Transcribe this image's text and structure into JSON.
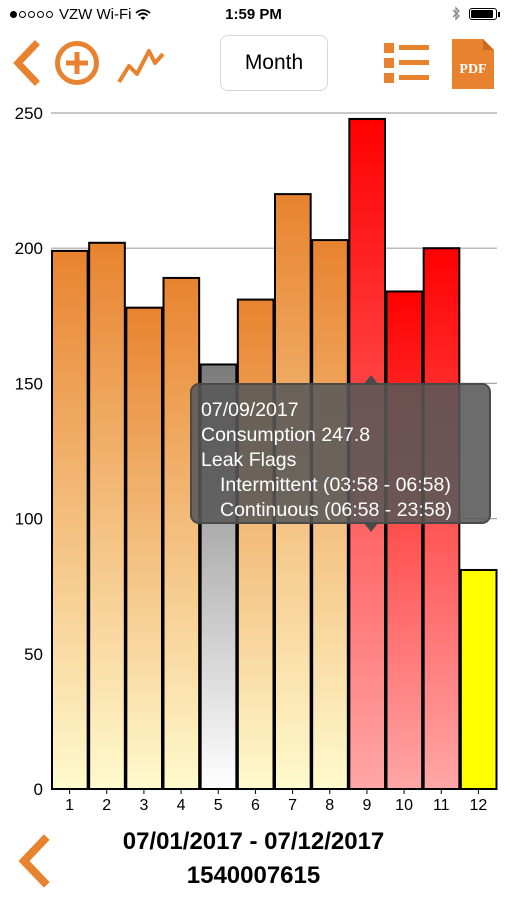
{
  "status_bar": {
    "carrier": "VZW Wi-Fi",
    "time": "1:59 PM",
    "signal_bars": 1,
    "battery_level": 1.0
  },
  "toolbar": {
    "back_icon": "chevron-left-icon",
    "add_icon": "plus-circle-icon",
    "trend_icon": "line-chart-icon",
    "period": "Month",
    "list_icon": "list-icon",
    "pdf_label": "PDF",
    "accent_color": "#e8822e"
  },
  "chart_data": {
    "type": "bar",
    "categories": [
      "1",
      "2",
      "3",
      "4",
      "5",
      "6",
      "7",
      "8",
      "9",
      "10",
      "11",
      "12"
    ],
    "values": [
      199,
      202,
      178,
      189,
      157,
      181,
      220,
      203,
      247.8,
      184,
      200,
      81
    ],
    "status": [
      "normal",
      "normal",
      "normal",
      "normal",
      "none",
      "normal",
      "normal",
      "normal",
      "leak",
      "leak",
      "leak",
      "high"
    ],
    "ylim": [
      0,
      250
    ],
    "yticks": [
      "0",
      "50",
      "100",
      "150",
      "200",
      "250"
    ],
    "grid": true,
    "colors": {
      "normal": [
        "#e8832e",
        "#fffacd"
      ],
      "none": [
        "#7a7a7a",
        "#ffffff"
      ],
      "leak": [
        "#ff0000",
        "#ffa6a6"
      ],
      "high": [
        "#ffff00",
        "#ffff00"
      ]
    }
  },
  "tooltip": {
    "date": "07/09/2017",
    "consumption": "Consumption 247.8",
    "leak_title": "Leak Flags",
    "intermittent": "Intermittent (03:58 - 06:58)",
    "continuous": "Continuous (06:58 - 23:58)"
  },
  "footer": {
    "back_icon": "chevron-left-icon",
    "date_range": "07/01/2017 - 07/12/2017",
    "meter_id": "1540007615"
  }
}
